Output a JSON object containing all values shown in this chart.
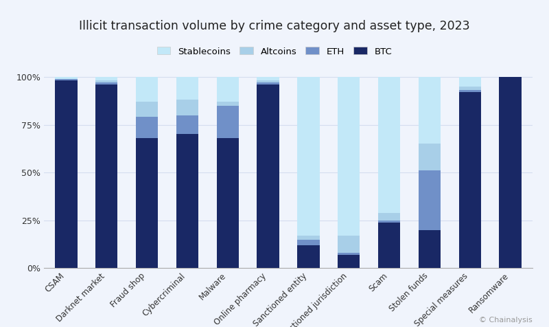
{
  "title": "Illicit transaction volume by crime category and asset type, 2023",
  "categories": [
    "CSAM",
    "Darknet market",
    "Fraud shop",
    "Cybercriminal",
    "Malware",
    "Online pharmacy",
    "Sanctioned entity",
    "Sanctioned jurisdiction",
    "Scam",
    "Stolen funds",
    "Special measures",
    "Ransomware"
  ],
  "legend_labels": [
    "Stablecoins",
    "Altcoins",
    "ETH",
    "BTC"
  ],
  "colors": {
    "Stablecoins": "#c2e8f8",
    "Altcoins": "#a8cfe8",
    "ETH": "#7090c8",
    "BTC": "#192865"
  },
  "data": {
    "BTC": [
      98,
      96,
      68,
      70,
      68,
      96,
      12,
      7,
      24,
      20,
      92,
      100
    ],
    "ETH": [
      1,
      1,
      11,
      10,
      17,
      1,
      3,
      1,
      1,
      31,
      1,
      0
    ],
    "Altcoins": [
      0,
      1,
      8,
      8,
      2,
      1,
      2,
      9,
      4,
      14,
      2,
      0
    ],
    "Stablecoins": [
      1,
      2,
      13,
      12,
      13,
      2,
      83,
      83,
      71,
      35,
      5,
      0
    ]
  },
  "ylabel_ticks": [
    "0%",
    "25%",
    "50%",
    "75%",
    "100%"
  ],
  "yticks": [
    0,
    25,
    50,
    75,
    100
  ],
  "background_color": "#f0f4fc",
  "grid_color": "#d5ddef",
  "text_color": "#333333",
  "watermark": "© Chainalysis"
}
